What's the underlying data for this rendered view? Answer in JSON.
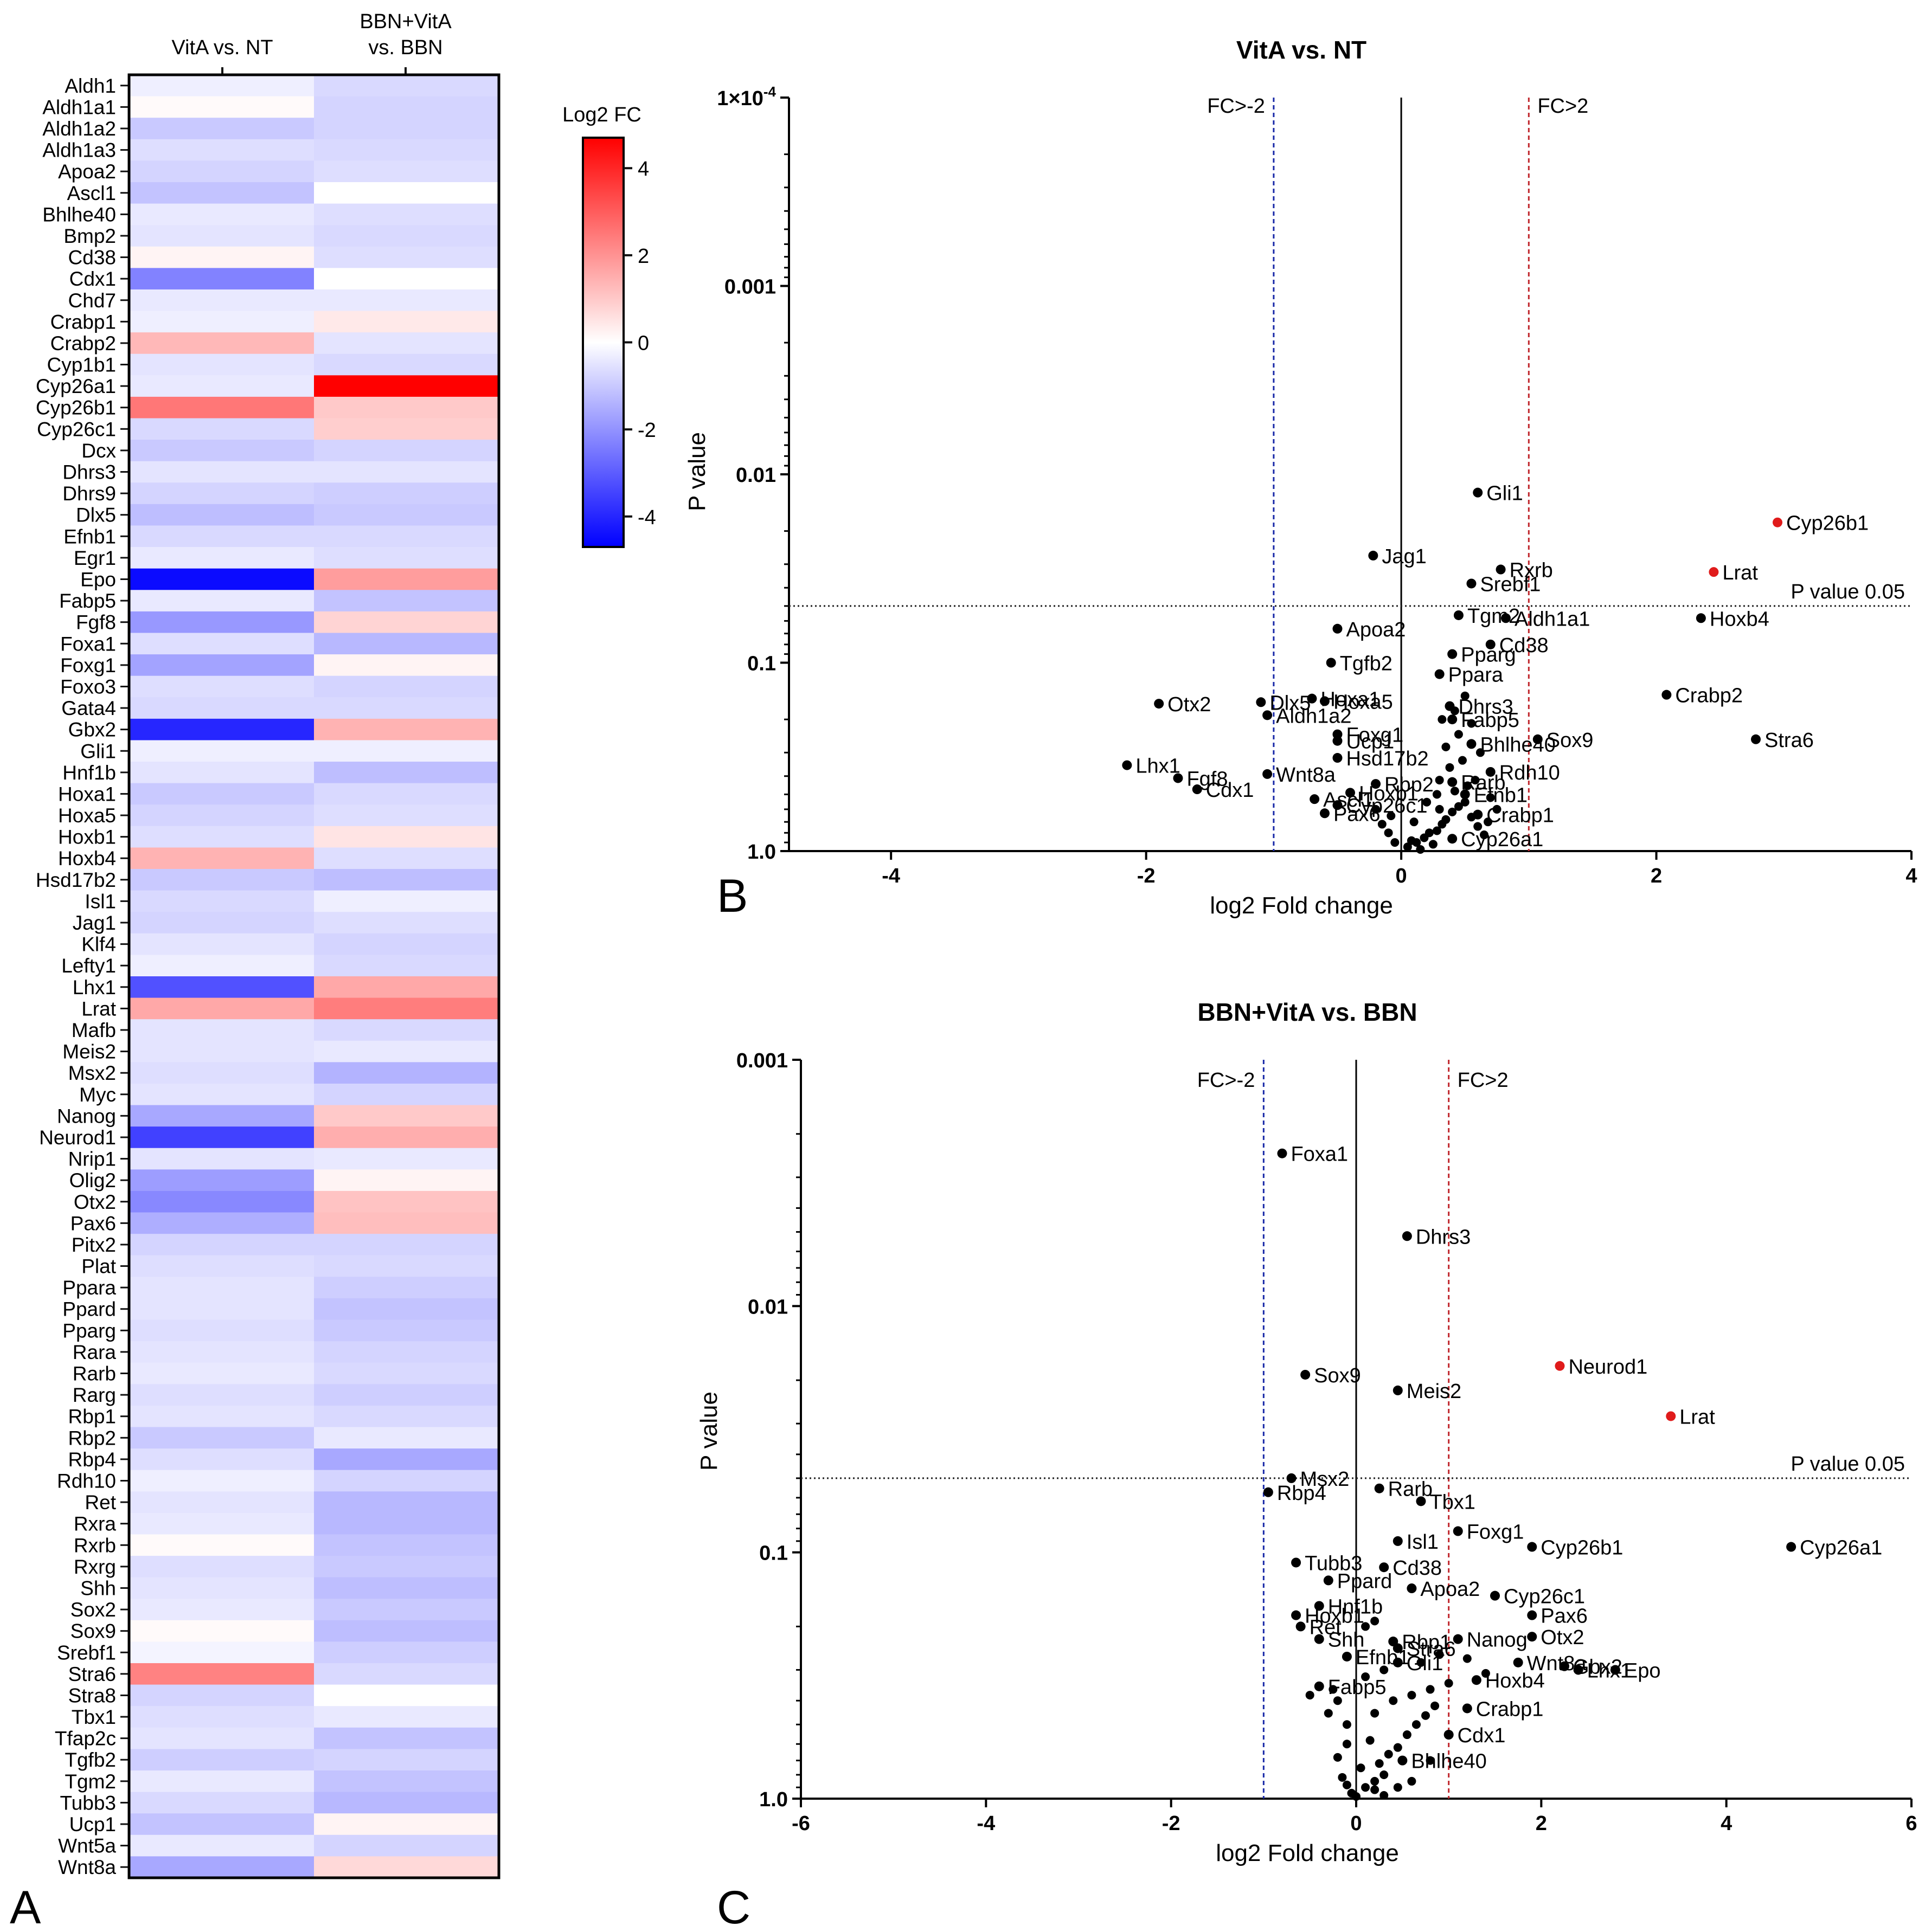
{
  "chart_data": [
    {
      "panel": "A",
      "type": "heatmap",
      "columns": [
        "VitA vs. NT",
        "BBN+VitA vs. BBN"
      ],
      "colorbar": {
        "title": "Log2 FC",
        "range": [
          -4.7,
          4.7
        ],
        "ticks": [
          4,
          2,
          0,
          -2,
          -4
        ],
        "colors": {
          "low": "#0000ff",
          "mid": "#ffffff",
          "high": "#ff0000"
        }
      },
      "genes": [
        "Aldh1",
        "Aldh1a1",
        "Aldh1a2",
        "Aldh1a3",
        "Apoa2",
        "Ascl1",
        "Bhlhe40",
        "Bmp2",
        "Cd38",
        "Cdx1",
        "Chd7",
        "Crabp1",
        "Crabp2",
        "Cyp1b1",
        "Cyp26a1",
        "Cyp26b1",
        "Cyp26c1",
        "Dcx",
        "Dhrs3",
        "Dhrs9",
        "Dlx5",
        "Efnb1",
        "Egr1",
        "Epo",
        "Fabp5",
        "Fgf8",
        "Foxa1",
        "Foxg1",
        "Foxo3",
        "Gata4",
        "Gbx2",
        "Gli1",
        "Hnf1b",
        "Hoxa1",
        "Hoxa5",
        "Hoxb1",
        "Hoxb4",
        "Hsd17b2",
        "Isl1",
        "Jag1",
        "Klf4",
        "Lefty1",
        "Lhx1",
        "Lrat",
        "Mafb",
        "Meis2",
        "Msx2",
        "Myc",
        "Nanog",
        "Neurod1",
        "Nrip1",
        "Olig2",
        "Otx2",
        "Pax6",
        "Pitx2",
        "Plat",
        "Ppara",
        "Ppard",
        "Pparg",
        "Rara",
        "Rarb",
        "Rarg",
        "Rbp1",
        "Rbp2",
        "Rbp4",
        "Rdh10",
        "Ret",
        "Rxra",
        "Rxrb",
        "Rxrg",
        "Shh",
        "Sox2",
        "Sox9",
        "Srebf1",
        "Stra6",
        "Stra8",
        "Tbx1",
        "Tfap2c",
        "Tgfb2",
        "Tgm2",
        "Tubb3",
        "Ucp1",
        "Wnt5a",
        "Wnt8a"
      ],
      "values_vitA_vs_NT": [
        -0.3,
        0.1,
        -1.0,
        -0.6,
        -0.8,
        -1.1,
        -0.4,
        -0.5,
        0.2,
        -2.3,
        -0.4,
        -0.3,
        1.3,
        -0.5,
        -0.4,
        2.5,
        -0.7,
        -1.0,
        -0.5,
        -0.8,
        -1.2,
        -0.7,
        -0.4,
        -4.5,
        -0.4,
        -1.9,
        -0.6,
        -1.7,
        -0.6,
        -0.7,
        -4.0,
        -0.3,
        -0.5,
        -1.0,
        -0.8,
        -0.6,
        1.4,
        -1.0,
        -0.7,
        -0.8,
        -0.5,
        -0.3,
        -3.2,
        1.6,
        -0.5,
        -0.5,
        -0.6,
        -0.5,
        -1.6,
        -3.5,
        -0.5,
        -1.8,
        -2.2,
        -1.5,
        -0.8,
        -0.6,
        -0.5,
        -0.5,
        -0.6,
        -0.5,
        -0.4,
        -0.6,
        -0.5,
        -1.0,
        -0.6,
        -0.3,
        -0.5,
        -0.4,
        0.1,
        -0.6,
        -0.5,
        -0.4,
        0.1,
        -0.2,
        2.3,
        -0.8,
        -0.6,
        -0.5,
        -0.9,
        -0.4,
        -0.7,
        -1.1,
        -0.4,
        -1.6
      ],
      "values_BBN_VitA_vs_BBN": [
        -0.7,
        -0.8,
        -0.8,
        -0.7,
        -0.6,
        0.0,
        -0.6,
        -0.7,
        -0.6,
        0.0,
        -0.4,
        0.4,
        -0.5,
        -0.7,
        4.7,
        1.0,
        0.9,
        -0.8,
        -0.5,
        -0.9,
        -1.0,
        -0.7,
        -0.6,
        1.8,
        -1.1,
        0.8,
        -1.3,
        0.2,
        -0.8,
        -0.7,
        1.4,
        -0.3,
        -1.2,
        -0.7,
        -0.6,
        0.5,
        -0.6,
        -1.2,
        -0.3,
        -0.6,
        -0.8,
        -0.7,
        1.6,
        2.4,
        -0.7,
        -0.4,
        -1.4,
        -0.8,
        1.0,
        1.5,
        -0.4,
        0.2,
        1.1,
        1.2,
        -0.8,
        -0.7,
        -0.9,
        -1.1,
        -1.0,
        -0.8,
        -0.7,
        -0.9,
        -0.7,
        -0.4,
        -1.6,
        -0.8,
        -1.3,
        -1.3,
        -1.1,
        -1.0,
        -1.2,
        -1.0,
        -1.2,
        -0.9,
        -0.7,
        0.0,
        -0.4,
        -1.1,
        -0.8,
        -1.1,
        -1.3,
        0.2,
        -0.8,
        0.7
      ]
    },
    {
      "panel": "B",
      "type": "scatter",
      "title": "VitA vs. NT",
      "xlabel": "log2 Fold change",
      "ylabel": "P value",
      "xlim": [
        -4.8,
        4
      ],
      "x_ticks": [
        "-4",
        "-2",
        "0",
        "2",
        "4"
      ],
      "ylim": [
        1.0,
        0.0001
      ],
      "y_scale": "log",
      "y_ticks": [
        "1×10-4",
        "0.001",
        "0.01",
        "0.1",
        "1.0"
      ],
      "fc_lines": {
        "low": -1,
        "high": 1,
        "low_label": "FC>-2",
        "high_label": "FC>2"
      },
      "pvalue_line": {
        "value": 0.05,
        "label": "P value 0.05"
      },
      "labeled_points": [
        {
          "gene": "Cyp26b1",
          "x": 2.95,
          "p": 0.018,
          "sig": true
        },
        {
          "gene": "Lrat",
          "x": 2.45,
          "p": 0.033,
          "sig": true
        },
        {
          "gene": "Gli1",
          "x": 0.6,
          "p": 0.0125
        },
        {
          "gene": "Rxrb",
          "x": 0.78,
          "p": 0.032
        },
        {
          "gene": "Jag1",
          "x": -0.22,
          "p": 0.027
        },
        {
          "gene": "Srebf1",
          "x": 0.55,
          "p": 0.038
        },
        {
          "gene": "Hoxb4",
          "x": 2.35,
          "p": 0.058
        },
        {
          "gene": "Tgm2",
          "x": 0.45,
          "p": 0.056
        },
        {
          "gene": "Aldh1a1",
          "x": 0.82,
          "p": 0.058
        },
        {
          "gene": "Apoa2",
          "x": -0.5,
          "p": 0.066
        },
        {
          "gene": "Cd38",
          "x": 0.7,
          "p": 0.08
        },
        {
          "gene": "Pparg",
          "x": 0.4,
          "p": 0.09
        },
        {
          "gene": "Tgfb2",
          "x": -0.55,
          "p": 0.1
        },
        {
          "gene": "Crabp2",
          "x": 2.08,
          "p": 0.148
        },
        {
          "gene": "Ppara",
          "x": 0.3,
          "p": 0.115
        },
        {
          "gene": "Dlx5",
          "x": -1.1,
          "p": 0.162
        },
        {
          "gene": "Hoxa1",
          "x": -0.7,
          "p": 0.155
        },
        {
          "gene": "Hoxa5",
          "x": -0.6,
          "p": 0.16
        },
        {
          "gene": "Otx2",
          "x": -1.9,
          "p": 0.165
        },
        {
          "gene": "Dhrs3",
          "x": 0.38,
          "p": 0.17
        },
        {
          "gene": "Aldh1a2",
          "x": -1.05,
          "p": 0.19
        },
        {
          "gene": "Fabp5",
          "x": 0.4,
          "p": 0.2
        },
        {
          "gene": "Foxg1",
          "x": -0.5,
          "p": 0.24
        },
        {
          "gene": "Sox9",
          "x": 1.07,
          "p": 0.255
        },
        {
          "gene": "Stra6",
          "x": 2.78,
          "p": 0.255
        },
        {
          "gene": "Ucp1",
          "x": -0.5,
          "p": 0.26
        },
        {
          "gene": "Bhlhe40",
          "x": 0.55,
          "p": 0.27
        },
        {
          "gene": "Lhx1",
          "x": -2.15,
          "p": 0.35
        },
        {
          "gene": "Wnt8a",
          "x": -1.05,
          "p": 0.39
        },
        {
          "gene": "Rdh10",
          "x": 0.7,
          "p": 0.38
        },
        {
          "gene": "Hsd17b2",
          "x": -0.5,
          "p": 0.32
        },
        {
          "gene": "Rbp2",
          "x": -0.2,
          "p": 0.44
        },
        {
          "gene": "Rarb",
          "x": 0.4,
          "p": 0.43
        },
        {
          "gene": "Cdx1",
          "x": -1.6,
          "p": 0.47
        },
        {
          "gene": "Fgf8",
          "x": -1.75,
          "p": 0.41
        },
        {
          "gene": "Hoxb1",
          "x": -0.4,
          "p": 0.49
        },
        {
          "gene": "Efnb1",
          "x": 0.5,
          "p": 0.5
        },
        {
          "gene": "Ascl1",
          "x": -0.68,
          "p": 0.53
        },
        {
          "gene": "Cyp26c1",
          "x": -0.5,
          "p": 0.57
        },
        {
          "gene": "Pax6",
          "x": -0.6,
          "p": 0.63
        },
        {
          "gene": "Crabp1",
          "x": 0.6,
          "p": 0.64
        },
        {
          "gene": "Cyp26a1",
          "x": 0.4,
          "p": 0.86
        }
      ],
      "unlabeled_points": [
        [
          0.05,
          0.95
        ],
        [
          0.12,
          0.9
        ],
        [
          0.18,
          0.85
        ],
        [
          0.22,
          0.8
        ],
        [
          0.28,
          0.78
        ],
        [
          0.32,
          0.72
        ],
        [
          0.35,
          0.68
        ],
        [
          0.4,
          0.62
        ],
        [
          0.45,
          0.58
        ],
        [
          0.5,
          0.55
        ],
        [
          0.55,
          0.66
        ],
        [
          0.6,
          0.74
        ],
        [
          0.65,
          0.82
        ],
        [
          0.25,
          0.92
        ],
        [
          0.15,
          0.98
        ],
        [
          0.08,
          0.88
        ],
        [
          0.3,
          0.6
        ],
        [
          0.42,
          0.48
        ],
        [
          0.52,
          0.45
        ],
        [
          0.58,
          0.42
        ],
        [
          0.38,
          0.36
        ],
        [
          0.48,
          0.33
        ],
        [
          0.62,
          0.3
        ],
        [
          0.35,
          0.28
        ],
        [
          0.45,
          0.24
        ],
        [
          0.55,
          0.21
        ],
        [
          0.32,
          0.2
        ],
        [
          0.42,
          0.18
        ],
        [
          0.5,
          0.15
        ],
        [
          -0.05,
          0.9
        ],
        [
          -0.1,
          0.8
        ],
        [
          -0.15,
          0.72
        ],
        [
          -0.08,
          0.65
        ],
        [
          -0.2,
          0.6
        ],
        [
          0.1,
          0.7
        ],
        [
          0.2,
          0.55
        ],
        [
          0.7,
          0.52
        ],
        [
          0.75,
          0.6
        ],
        [
          0.68,
          0.7
        ],
        [
          0.28,
          0.5
        ],
        [
          0.3,
          0.42
        ]
      ]
    },
    {
      "panel": "C",
      "type": "scatter",
      "title": "BBN+VitA vs. BBN",
      "xlabel": "log2 Fold change",
      "ylabel": "P value",
      "xlim": [
        -6,
        6
      ],
      "x_ticks": [
        "-6",
        "-4",
        "-2",
        "0",
        "2",
        "4",
        "6"
      ],
      "ylim": [
        1.0,
        0.001
      ],
      "y_scale": "log",
      "y_ticks": [
        "0.001",
        "0.01",
        "0.1",
        "1.0"
      ],
      "fc_lines": {
        "low": -1,
        "high": 1,
        "low_label": "FC>-2",
        "high_label": "FC>2"
      },
      "pvalue_line": {
        "value": 0.05,
        "label": "P value 0.05"
      },
      "labeled_points": [
        {
          "gene": "Foxa1",
          "x": -0.8,
          "p": 0.0024
        },
        {
          "gene": "Dhrs3",
          "x": 0.55,
          "p": 0.0052
        },
        {
          "gene": "Neurod1",
          "x": 2.2,
          "p": 0.0175,
          "sig": true
        },
        {
          "gene": "Lrat",
          "x": 3.4,
          "p": 0.028,
          "sig": true
        },
        {
          "gene": "Sox9",
          "x": -0.55,
          "p": 0.019
        },
        {
          "gene": "Meis2",
          "x": 0.45,
          "p": 0.022
        },
        {
          "gene": "Msx2",
          "x": -0.7,
          "p": 0.05
        },
        {
          "gene": "Rbp4",
          "x": -0.95,
          "p": 0.057
        },
        {
          "gene": "Rarb",
          "x": 0.25,
          "p": 0.055
        },
        {
          "gene": "Tbx1",
          "x": 0.7,
          "p": 0.062
        },
        {
          "gene": "Isl1",
          "x": 0.45,
          "p": 0.09
        },
        {
          "gene": "Foxg1",
          "x": 1.1,
          "p": 0.082
        },
        {
          "gene": "Cyp26b1",
          "x": 1.9,
          "p": 0.095
        },
        {
          "gene": "Cyp26a1",
          "x": 4.7,
          "p": 0.095
        },
        {
          "gene": "Tubb3",
          "x": -0.65,
          "p": 0.11
        },
        {
          "gene": "Cd38",
          "x": 0.3,
          "p": 0.115
        },
        {
          "gene": "Ppard",
          "x": -0.3,
          "p": 0.13
        },
        {
          "gene": "Apoa2",
          "x": 0.6,
          "p": 0.14
        },
        {
          "gene": "Cyp26c1",
          "x": 1.5,
          "p": 0.15
        },
        {
          "gene": "Hnf1b",
          "x": -0.4,
          "p": 0.165
        },
        {
          "gene": "Hoxb1",
          "x": -0.65,
          "p": 0.18
        },
        {
          "gene": "Pax6",
          "x": 1.9,
          "p": 0.18
        },
        {
          "gene": "Ret",
          "x": -0.6,
          "p": 0.2
        },
        {
          "gene": "Shh",
          "x": -0.4,
          "p": 0.225
        },
        {
          "gene": "Rbp1",
          "x": 0.4,
          "p": 0.23
        },
        {
          "gene": "Nanog",
          "x": 1.1,
          "p": 0.225
        },
        {
          "gene": "Otx2",
          "x": 1.9,
          "p": 0.22
        },
        {
          "gene": "Stra6",
          "x": 0.45,
          "p": 0.245
        },
        {
          "gene": "Efnb1",
          "x": -0.1,
          "p": 0.265
        },
        {
          "gene": "Gli1",
          "x": 0.45,
          "p": 0.28
        },
        {
          "gene": "Wnt8a",
          "x": 1.75,
          "p": 0.28
        },
        {
          "gene": "Gbx2",
          "x": 2.25,
          "p": 0.29
        },
        {
          "gene": "Lhx1",
          "x": 2.4,
          "p": 0.3
        },
        {
          "gene": "Epo",
          "x": 2.8,
          "p": 0.3
        },
        {
          "gene": "Hoxb4",
          "x": 1.3,
          "p": 0.33
        },
        {
          "gene": "Fabp5",
          "x": -0.4,
          "p": 0.35
        },
        {
          "gene": "Crabp1",
          "x": 1.2,
          "p": 0.43
        },
        {
          "gene": "Cdx1",
          "x": 1.0,
          "p": 0.55
        },
        {
          "gene": "Bhlhe40",
          "x": 0.5,
          "p": 0.7
        }
      ],
      "unlabeled_points": [
        [
          -0.05,
          0.95
        ],
        [
          0.1,
          0.9
        ],
        [
          0.2,
          0.85
        ],
        [
          0.3,
          0.8
        ],
        [
          -0.15,
          0.82
        ],
        [
          0.05,
          0.75
        ],
        [
          0.25,
          0.72
        ],
        [
          0.35,
          0.66
        ],
        [
          0.45,
          0.62
        ],
        [
          -0.2,
          0.68
        ],
        [
          -0.1,
          0.6
        ],
        [
          0.15,
          0.58
        ],
        [
          0.55,
          0.55
        ],
        [
          0.65,
          0.5
        ],
        [
          0.75,
          0.46
        ],
        [
          0.85,
          0.42
        ],
        [
          -0.1,
          0.5
        ],
        [
          0.2,
          0.45
        ],
        [
          0.4,
          0.4
        ],
        [
          0.6,
          0.38
        ],
        [
          0.8,
          0.36
        ],
        [
          1.0,
          0.34
        ],
        [
          -0.2,
          0.4
        ],
        [
          -0.25,
          0.36
        ],
        [
          0.1,
          0.32
        ],
        [
          0.3,
          0.3
        ],
        [
          0.7,
          0.28
        ],
        [
          0.9,
          0.26
        ],
        [
          1.2,
          0.27
        ],
        [
          1.4,
          0.31
        ],
        [
          0.2,
          0.92
        ],
        [
          0.0,
          0.98
        ],
        [
          0.3,
          0.97
        ],
        [
          -0.1,
          0.88
        ],
        [
          0.45,
          0.9
        ],
        [
          0.6,
          0.85
        ],
        [
          0.1,
          0.2
        ],
        [
          0.2,
          0.19
        ],
        [
          -0.5,
          0.38
        ],
        [
          -0.3,
          0.45
        ],
        [
          0.8,
          0.7
        ]
      ]
    }
  ],
  "panel_labels": [
    "A",
    "B",
    "C"
  ]
}
